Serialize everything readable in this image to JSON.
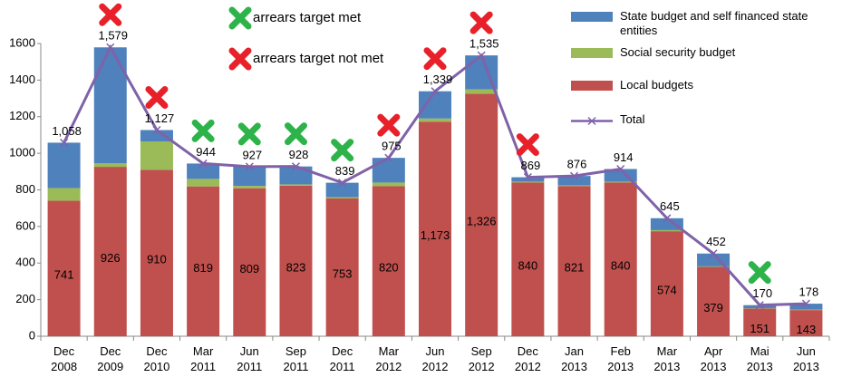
{
  "chart_data": {
    "type": "bar",
    "categories": [
      "Dec 2008",
      "Dec 2009",
      "Dec 2010",
      "Mar 2011",
      "Jun 2011",
      "Sep 2011",
      "Dec 2011",
      "Mar 2012",
      "Jun 2012",
      "Sep 2012",
      "Dec 2012",
      "Jan 2013",
      "Feb 2013",
      "Mar 2013",
      "Apr 2013",
      "Mai 2013",
      "Jun 2013"
    ],
    "series": [
      {
        "name": "Local budgets",
        "color": "#c0504d",
        "values": [
          741,
          926,
          910,
          819,
          809,
          823,
          753,
          820,
          1173,
          1326,
          840,
          821,
          840,
          574,
          379,
          151,
          143
        ],
        "value_labels": [
          "741",
          "926",
          "910",
          "819",
          "809",
          "823",
          "753",
          "820",
          "1,173",
          "1,326",
          "840",
          "821",
          "840",
          "574",
          "379",
          "151",
          "143"
        ]
      },
      {
        "name": "Social security budget",
        "color": "#9bbb59",
        "values": [
          69,
          19,
          155,
          41,
          13,
          7,
          7,
          20,
          17,
          24,
          5,
          4,
          5,
          6,
          3,
          2,
          2
        ]
      },
      {
        "name": "State budget and self financed state entities",
        "color": "#4f81bd",
        "values": [
          248,
          634,
          62,
          84,
          105,
          98,
          79,
          135,
          149,
          185,
          24,
          51,
          69,
          65,
          70,
          17,
          33
        ]
      },
      {
        "name": "Total",
        "type": "line",
        "color": "#7f62a8",
        "values": [
          1058,
          1579,
          1127,
          944,
          927,
          928,
          839,
          975,
          1339,
          1535,
          869,
          876,
          914,
          645,
          452,
          170,
          178
        ],
        "value_labels": [
          "1,058",
          "1,579",
          "1,127",
          "944",
          "927",
          "928",
          "839",
          "975",
          "1,339",
          "1,535",
          "869",
          "876",
          "914",
          "645",
          "452",
          "170",
          "178"
        ]
      }
    ],
    "legend_order": [
      "State budget and self financed state entities",
      "Social security budget",
      "Local budgets",
      "Total"
    ],
    "annotations": [
      {
        "label": "arrears target met",
        "color": "#2db34a",
        "categories": [
          "Mar 2011",
          "Jun 2011",
          "Sep 2011",
          "Dec 2011",
          "Mai 2013"
        ]
      },
      {
        "label": "arrears target not met",
        "color": "#e8202a",
        "categories": [
          "Dec 2009",
          "Dec 2010",
          "Mar 2012",
          "Jun 2012",
          "Sep 2012",
          "Dec 2012"
        ]
      }
    ],
    "ylim": [
      0,
      1600
    ],
    "yticks": [
      0,
      200,
      400,
      600,
      800,
      1000,
      1200,
      1400,
      1600
    ],
    "grid": false
  }
}
